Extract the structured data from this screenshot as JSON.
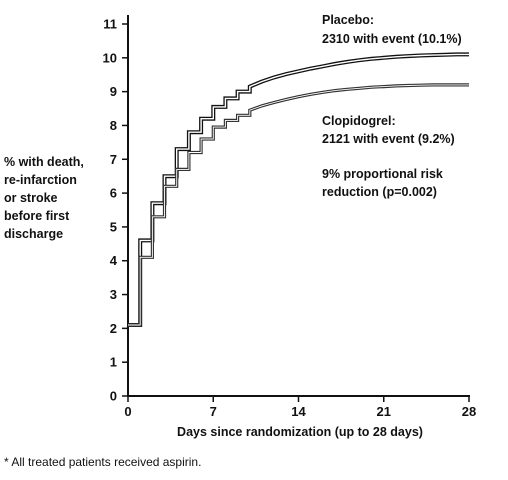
{
  "chart_data": {
    "type": "line",
    "xlabel": "Days since randomization (up to 28 days)",
    "ylabel_lines": [
      "% with death,",
      "re-infarction",
      "or stroke",
      "before first",
      "discharge"
    ],
    "xlim": [
      0,
      28
    ],
    "ylim": [
      0,
      11
    ],
    "x_ticks": [
      "0",
      "7",
      "14",
      "21",
      "28"
    ],
    "y_ticks": [
      "0",
      "1",
      "2",
      "3",
      "4",
      "5",
      "6",
      "7",
      "8",
      "9",
      "10",
      "11"
    ],
    "grid": false,
    "series": [
      {
        "name": "Placebo",
        "color": "#111111",
        "x": [
          0,
          0.5,
          1,
          1.5,
          2,
          2.5,
          3,
          3.5,
          4,
          4.5,
          5,
          5.5,
          6,
          6.5,
          7,
          7.5,
          8,
          8.5,
          9,
          9.5,
          10,
          11,
          12,
          13,
          14,
          15,
          16,
          17,
          18,
          19,
          20,
          21,
          22,
          23,
          24,
          25,
          26,
          27,
          28
        ],
        "values": [
          2.1,
          2.1,
          4.6,
          4.6,
          5.7,
          5.7,
          6.5,
          6.5,
          7.3,
          7.3,
          7.8,
          7.8,
          8.2,
          8.2,
          8.55,
          8.55,
          8.8,
          8.8,
          9.0,
          9.0,
          9.15,
          9.3,
          9.42,
          9.52,
          9.6,
          9.68,
          9.75,
          9.82,
          9.88,
          9.93,
          9.97,
          10.0,
          10.03,
          10.05,
          10.07,
          10.08,
          10.09,
          10.1,
          10.1
        ]
      },
      {
        "name": "Clopidogrel",
        "color": "#333333",
        "x": [
          0,
          0.5,
          1,
          1.5,
          2,
          2.5,
          3,
          3.5,
          4,
          4.5,
          5,
          5.5,
          6,
          6.5,
          7,
          7.5,
          8,
          8.5,
          9,
          9.5,
          10,
          11,
          12,
          13,
          14,
          15,
          16,
          17,
          18,
          19,
          20,
          21,
          22,
          23,
          24,
          25,
          26,
          27,
          28
        ],
        "values": [
          2.1,
          2.1,
          4.1,
          4.1,
          5.3,
          5.3,
          6.2,
          6.2,
          6.7,
          6.7,
          7.2,
          7.2,
          7.6,
          7.6,
          7.95,
          7.95,
          8.15,
          8.15,
          8.3,
          8.3,
          8.45,
          8.58,
          8.68,
          8.77,
          8.85,
          8.92,
          8.98,
          9.03,
          9.07,
          9.1,
          9.13,
          9.15,
          9.17,
          9.18,
          9.19,
          9.2,
          9.2,
          9.2,
          9.2
        ]
      }
    ],
    "annotations": {
      "placebo_name": "Placebo:",
      "placebo_events": "2310 with event (10.1%)",
      "clopidogrel_name": "Clopidogrel:",
      "clopidogrel_events": "2121 with event (9.2%)",
      "risk_line1": "9% proportional risk",
      "risk_line2": "reduction (p=0.002)"
    }
  },
  "footnote": "* All treated patients received aspirin."
}
